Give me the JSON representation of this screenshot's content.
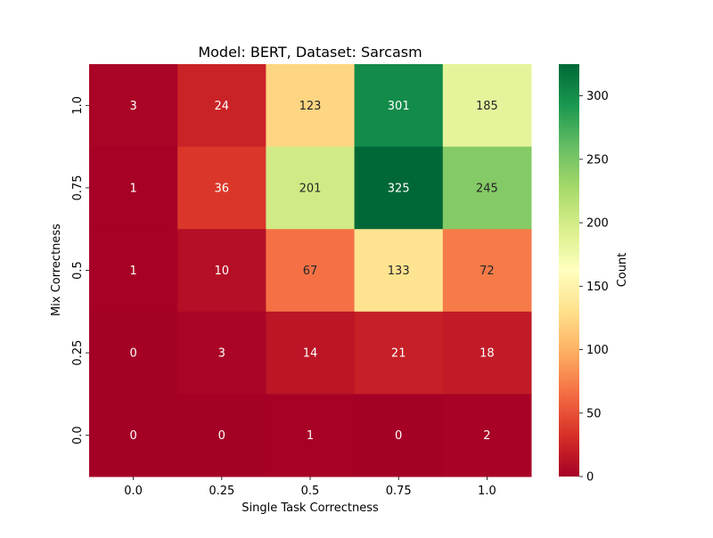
{
  "chart_data": {
    "type": "heatmap",
    "title": "Model: BERT, Dataset: Sarcasm",
    "xlabel": "Single Task Correctness",
    "ylabel": "Mix Correctness",
    "x_categories": [
      "0.0",
      "0.25",
      "0.5",
      "0.75",
      "1.0"
    ],
    "y_categories": [
      "1.0",
      "0.75",
      "0.5",
      "0.25",
      "0.0"
    ],
    "values": [
      [
        3,
        24,
        123,
        301,
        185
      ],
      [
        1,
        36,
        201,
        325,
        245
      ],
      [
        1,
        10,
        67,
        133,
        72
      ],
      [
        0,
        3,
        14,
        21,
        18
      ],
      [
        0,
        0,
        1,
        0,
        2
      ]
    ],
    "colorbar": {
      "label": "Count",
      "range": [
        0,
        325
      ],
      "ticks": [
        0,
        50,
        100,
        150,
        200,
        250,
        300
      ],
      "colormap": "RdYlGn",
      "stops": [
        "#a50026",
        "#d73027",
        "#f46d43",
        "#fdae61",
        "#fee08b",
        "#ffffbf",
        "#d9ef8b",
        "#a6d96a",
        "#66bd63",
        "#1a9850",
        "#006837"
      ]
    },
    "grid": false
  }
}
